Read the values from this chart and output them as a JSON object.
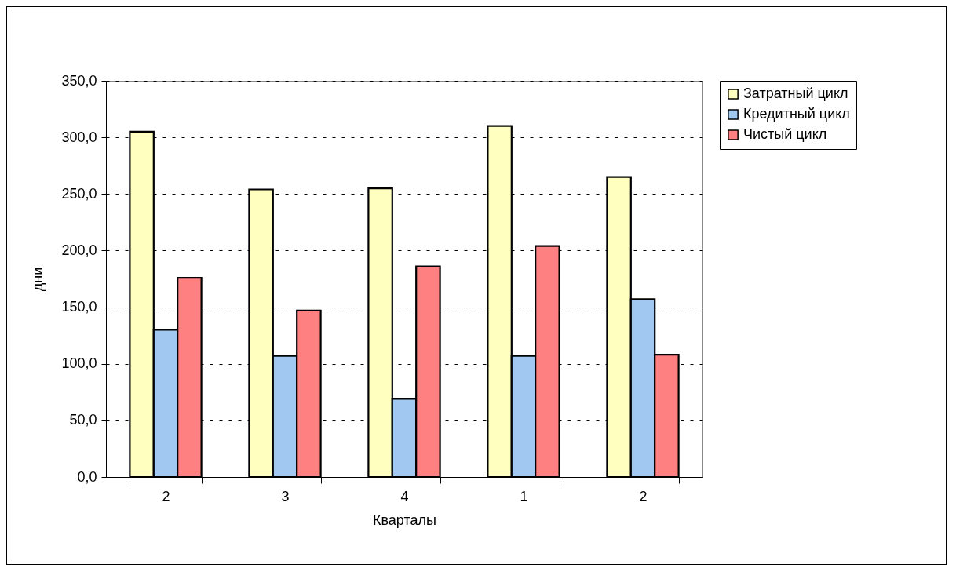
{
  "chart_data": {
    "type": "bar",
    "xlabel": "Кварталы",
    "ylabel": "дни",
    "categories": [
      "2",
      "3",
      "4",
      "1",
      "2"
    ],
    "series": [
      {
        "name": "Затратный цикл",
        "color": "#ffffc0",
        "values": [
          305,
          254,
          255,
          310,
          265
        ]
      },
      {
        "name": "Кредитный цикл",
        "color": "#a0c8f0",
        "values": [
          130,
          107,
          69,
          107,
          157
        ]
      },
      {
        "name": "Чистый цикл",
        "color": "#ff8080",
        "values": [
          176,
          147,
          186,
          204,
          108
        ]
      }
    ],
    "ylim": [
      0,
      350
    ],
    "yticks": [
      {
        "value": 0,
        "label": "0,0"
      },
      {
        "value": 50,
        "label": "50,0"
      },
      {
        "value": 100,
        "label": "100,0"
      },
      {
        "value": 150,
        "label": "150,0"
      },
      {
        "value": 200,
        "label": "200,0"
      },
      {
        "value": 250,
        "label": "250,0"
      },
      {
        "value": 300,
        "label": "300,0"
      },
      {
        "value": 350,
        "label": "350,0"
      }
    ],
    "grid": "y",
    "legend": "right"
  }
}
